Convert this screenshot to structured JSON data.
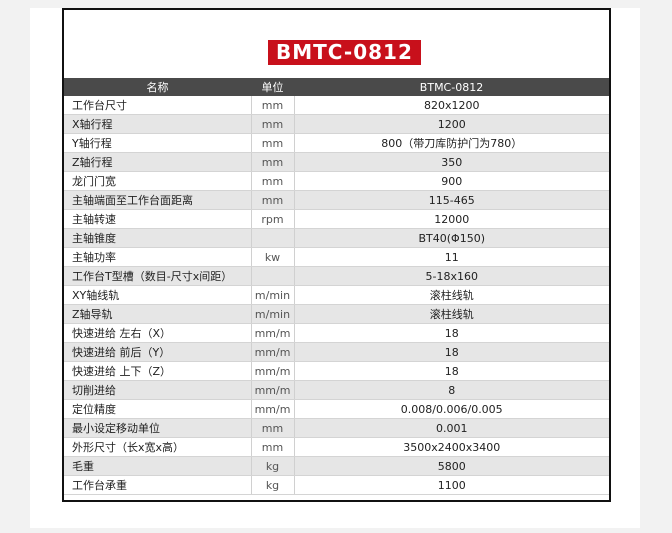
{
  "title": "BMTC-0812",
  "headers": {
    "name": "名称",
    "unit": "单位",
    "value": "BTMC-0812"
  },
  "rows": [
    {
      "name": "工作台尺寸",
      "unit": "mm",
      "value": "820x1200"
    },
    {
      "name": "X轴行程",
      "unit": "mm",
      "value": "1200"
    },
    {
      "name": "Y轴行程",
      "unit": "mm",
      "value": "800（带刀库防护门为780）"
    },
    {
      "name": "Z轴行程",
      "unit": "mm",
      "value": "350"
    },
    {
      "name": "龙门门宽",
      "unit": "mm",
      "value": "900"
    },
    {
      "name": "主轴端面至工作台面距离",
      "unit": "mm",
      "value": "115-465"
    },
    {
      "name": "主轴转速",
      "unit": "rpm",
      "value": "12000"
    },
    {
      "name": "主轴锥度",
      "unit": "",
      "value": "BT40(Φ150)"
    },
    {
      "name": "主轴功率",
      "unit": "kw",
      "value": "11"
    },
    {
      "name": "工作台T型槽（数目-尺寸x间距）",
      "unit": "",
      "value": "5-18x160"
    },
    {
      "name": "XY轴线轨",
      "unit": "m/min",
      "value": "滚柱线轨"
    },
    {
      "name": "Z轴导轨",
      "unit": "m/min",
      "value": "滚柱线轨"
    },
    {
      "name": "快速进给 左右（X）",
      "unit": "mm/m",
      "value": "18"
    },
    {
      "name": "快速进给 前后（Y）",
      "unit": "mm/m",
      "value": "18"
    },
    {
      "name": "快速进给 上下（Z）",
      "unit": "mm/m",
      "value": "18"
    },
    {
      "name": "切削进给",
      "unit": "mm/m",
      "value": "8"
    },
    {
      "name": "定位精度",
      "unit": "mm/m",
      "value": "0.008/0.006/0.005"
    },
    {
      "name": "最小设定移动单位",
      "unit": "mm",
      "value": "0.001"
    },
    {
      "name": "外形尺寸（长x宽x高）",
      "unit": "mm",
      "value": "3500x2400x3400"
    },
    {
      "name": "毛重",
      "unit": "kg",
      "value": "5800"
    },
    {
      "name": "工作台承重",
      "unit": "kg",
      "value": "1100"
    }
  ]
}
